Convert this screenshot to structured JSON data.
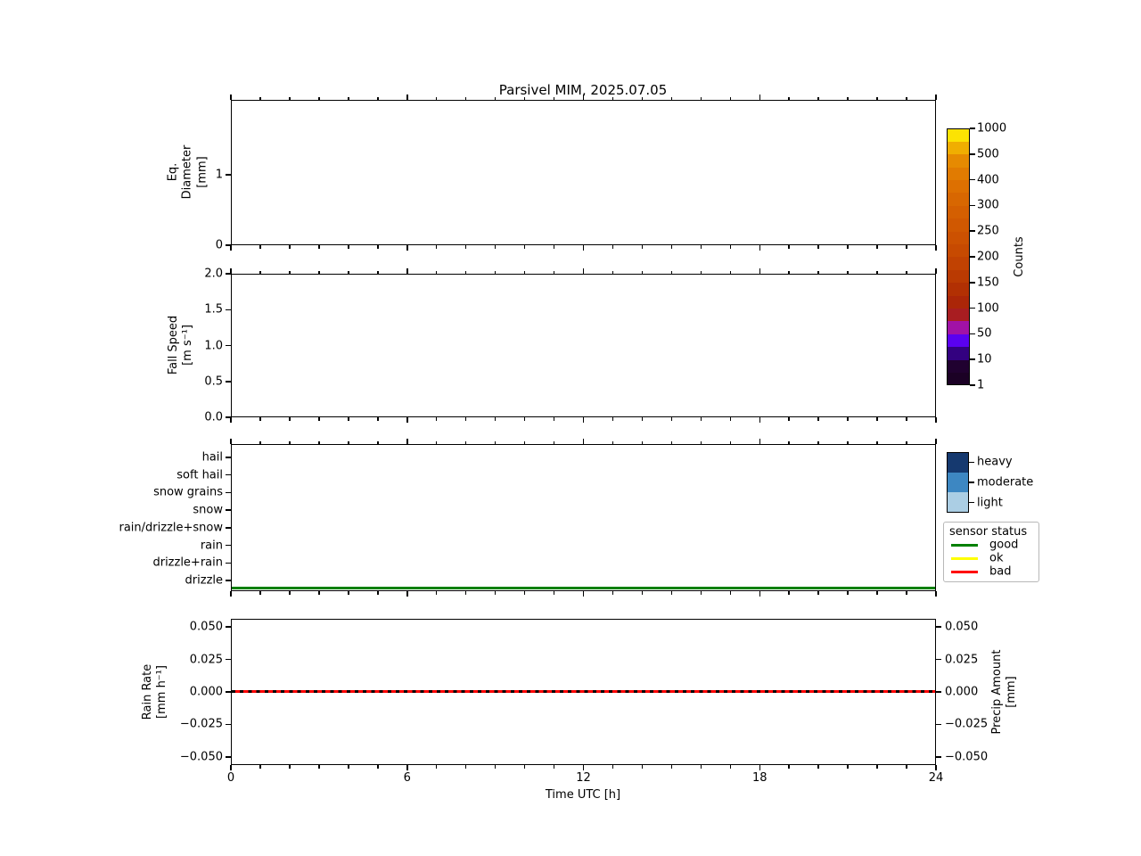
{
  "title": "Parsivel MIM, 2025.07.05",
  "xaxis": {
    "label": "Time UTC [h]",
    "tick_labels": [
      "0",
      "6",
      "12",
      "18",
      "24"
    ],
    "tick_values": [
      0,
      6,
      12,
      18,
      24
    ],
    "min": 0,
    "max": 24
  },
  "panels": {
    "p1": {
      "ylabel": "Eq.\nDiameter\n[mm]",
      "yticks": [
        {
          "v": 1,
          "label": "1"
        },
        {
          "v": 0,
          "label": "0"
        }
      ]
    },
    "p2": {
      "ylabel": "Fall Speed\n[m s⁻¹]",
      "yticks": [
        {
          "v": 2.0,
          "label": "2.0"
        },
        {
          "v": 1.5,
          "label": "1.5"
        },
        {
          "v": 1.0,
          "label": "1.0"
        },
        {
          "v": 0.5,
          "label": "0.5"
        },
        {
          "v": 0.0,
          "label": "0.0"
        }
      ]
    },
    "p3": {
      "categories": [
        "hail",
        "soft hail",
        "snow grains",
        "snow",
        "rain/drizzle+snow",
        "rain",
        "drizzle+rain",
        "drizzle"
      ]
    },
    "p4": {
      "ylabel": "Rain Rate\n[mm h⁻¹]",
      "y2label": "Precip Amount\n[mm]",
      "yticks": [
        {
          "v": 0.05,
          "label": "0.050"
        },
        {
          "v": 0.025,
          "label": "0.025"
        },
        {
          "v": 0,
          "label": "0.000"
        },
        {
          "v": -0.025,
          "label": "−0.025"
        },
        {
          "v": -0.05,
          "label": "−0.050"
        }
      ]
    }
  },
  "colorbar": {
    "label": "Counts",
    "tick_labels_top_to_bottom": [
      "1000",
      "500",
      "400",
      "300",
      "250",
      "200",
      "150",
      "100",
      "50",
      "10",
      "1"
    ],
    "band_colors_bottom_to_top": [
      "#1b0125",
      "#200130",
      "#330180",
      "#5a01f0",
      "#a112a6",
      "#a81d21",
      "#ab2608",
      "#b23003",
      "#ba3a02",
      "#c14202",
      "#c74a01",
      "#cc5101",
      "#d05801",
      "#d45f01",
      "#d86701",
      "#dd7001",
      "#e17b01",
      "#e68a01",
      "#f0ae01",
      "#fce303"
    ]
  },
  "intensity_legend": {
    "labels": [
      "heavy",
      "moderate",
      "light"
    ],
    "colors": [
      "#15396f",
      "#3d87c2",
      "#abcee4"
    ]
  },
  "sensor_legend": {
    "title": "sensor status",
    "entries": [
      {
        "label": "good",
        "color": "#008000"
      },
      {
        "label": "ok",
        "color": "#ffff00"
      },
      {
        "label": "bad",
        "color": "#ff0000"
      }
    ]
  },
  "status_line_color": "#008000",
  "rain_line_color": "#ff0000",
  "chart_data": [
    {
      "type": "heatmap",
      "panel": "eq_diameter",
      "title": "Parsivel MIM, 2025.07.05",
      "ylabel": "Eq. Diameter [mm]",
      "xlabel": "Time UTC [h]",
      "xlim": [
        0,
        24
      ],
      "ylim": [
        0,
        2.06
      ],
      "yticks": [
        0,
        1
      ],
      "colormap_label": "Counts",
      "colormap_boundaries": [
        1,
        10,
        50,
        100,
        150,
        200,
        250,
        300,
        400,
        500,
        1000
      ],
      "data_points": [],
      "note": "empty — no particle counts recorded this day"
    },
    {
      "type": "heatmap",
      "panel": "fall_speed",
      "ylabel": "Fall Speed [m s⁻¹]",
      "xlim": [
        0,
        24
      ],
      "ylim": [
        0.0,
        2.0
      ],
      "yticks": [
        0.0,
        0.5,
        1.0,
        1.5,
        2.0
      ],
      "data_points": [],
      "note": "empty — no particle counts recorded this day"
    },
    {
      "type": "line",
      "panel": "precip_type",
      "categories_top_to_bottom": [
        "hail",
        "soft hail",
        "snow grains",
        "snow",
        "rain/drizzle+snow",
        "rain",
        "drizzle+rain",
        "drizzle"
      ],
      "intensity_levels": [
        "heavy",
        "moderate",
        "light"
      ],
      "series": [
        {
          "name": "sensor status: good",
          "color": "#008000",
          "x": [
            0,
            24
          ],
          "y": "constant baseline below drizzle"
        }
      ]
    },
    {
      "type": "line",
      "panel": "rain_rate",
      "ylabel": "Rain Rate [mm h⁻¹]",
      "y2label": "Precip Amount [mm]",
      "xlim": [
        0,
        24
      ],
      "ylim": [
        -0.0565,
        0.0565
      ],
      "yticks": [
        0.05,
        0.025,
        0,
        -0.025,
        -0.05
      ],
      "series": [
        {
          "name": "Rain Rate",
          "color": "#ff0000",
          "linestyle": "solid",
          "x": [
            0,
            24
          ],
          "y": [
            0,
            0
          ]
        },
        {
          "name": "Precip Amount",
          "color": "#000000",
          "linestyle": "dashed",
          "x": [
            0,
            24
          ],
          "y": [
            0,
            0
          ]
        }
      ]
    }
  ]
}
